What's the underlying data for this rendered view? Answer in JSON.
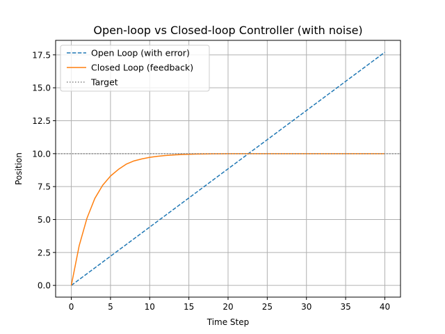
{
  "chart_data": {
    "type": "line",
    "title": "Open-loop vs Closed-loop Controller (with noise)",
    "xlabel": "Time Step",
    "ylabel": "Position",
    "xlim": [
      -2,
      42
    ],
    "ylim": [
      -0.89,
      18.6
    ],
    "xticks": [
      0,
      5,
      10,
      15,
      20,
      25,
      30,
      35,
      40
    ],
    "xtick_labels": [
      "0",
      "5",
      "10",
      "15",
      "20",
      "25",
      "30",
      "35",
      "40"
    ],
    "yticks": [
      0,
      2.5,
      5,
      7.5,
      10,
      12.5,
      15,
      17.5
    ],
    "ytick_labels": [
      "0.0",
      "2.5",
      "5.0",
      "7.5",
      "10.0",
      "12.5",
      "15.0",
      "17.5"
    ],
    "grid": true,
    "legend_position": "upper-left",
    "series": [
      {
        "name": "Open Loop (with error)",
        "color": "#1f77b4",
        "style": "dashed",
        "x": [
          0,
          40
        ],
        "y": [
          0,
          17.7
        ]
      },
      {
        "name": "Closed Loop (feedback)",
        "color": "#ff7f0e",
        "style": "solid",
        "x": [
          0,
          1,
          2,
          3,
          4,
          5,
          6,
          7,
          8,
          9,
          10,
          11,
          12,
          13,
          14,
          15,
          16,
          17,
          18,
          19,
          20,
          21,
          22,
          23,
          24,
          25,
          26,
          27,
          28,
          29,
          30,
          31,
          32,
          33,
          34,
          35,
          36,
          37,
          38,
          39,
          40
        ],
        "y": [
          0,
          3.0,
          5.1,
          6.6,
          7.6,
          8.3,
          8.8,
          9.2,
          9.45,
          9.6,
          9.72,
          9.8,
          9.86,
          9.9,
          9.93,
          9.95,
          9.97,
          9.98,
          9.99,
          9.99,
          10.0,
          10.0,
          10.0,
          10.0,
          10.0,
          10.0,
          10.0,
          10.0,
          10.0,
          10.0,
          10.0,
          10.0,
          10.0,
          10.0,
          10.0,
          10.0,
          10.0,
          10.0,
          10.0,
          10.0,
          10.0
        ]
      },
      {
        "name": "Target",
        "color": "#808080",
        "style": "dotted",
        "hline": 10
      }
    ]
  }
}
